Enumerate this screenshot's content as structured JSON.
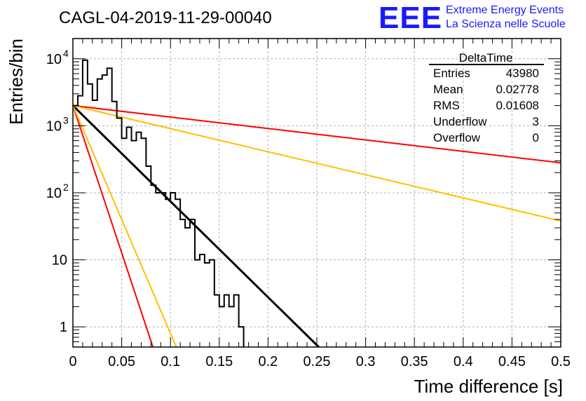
{
  "title": "CAGL-04-2019-11-29-00040",
  "logo": {
    "mark": "EEE",
    "line1": "Extreme Energy Events",
    "line2": "La Scienza nelle Scuole",
    "color": "#1a1aff"
  },
  "stats": {
    "title": "DeltaTime",
    "rows": [
      {
        "label": "Entries",
        "value": "43980"
      },
      {
        "label": "Mean",
        "value": "0.02778"
      },
      {
        "label": "RMS",
        "value": "0.01608"
      },
      {
        "label": "Underflow",
        "value": "3"
      },
      {
        "label": "Overflow",
        "value": "0"
      }
    ]
  },
  "chart_data": {
    "type": "histogram",
    "title": "CAGL-04-2019-11-29-00040",
    "xlabel": "Time difference [s]",
    "ylabel": "Entries/bin",
    "xlim": [
      0,
      0.5
    ],
    "ylim": [
      0.5,
      20000
    ],
    "yscale": "log",
    "grid": true,
    "x_ticks": [
      "0",
      "0.05",
      "0.1",
      "0.15",
      "0.2",
      "0.25",
      "0.3",
      "0.35",
      "0.4",
      "0.45",
      "0.5"
    ],
    "y_ticks": [
      {
        "value": 1,
        "base": "1",
        "exp": ""
      },
      {
        "value": 10,
        "base": "10",
        "exp": ""
      },
      {
        "value": 100,
        "base": "10",
        "exp": "2"
      },
      {
        "value": 1000,
        "base": "10",
        "exp": "3"
      },
      {
        "value": 10000,
        "base": "10",
        "exp": "4"
      }
    ],
    "bin_width": 0.005,
    "bins": [
      {
        "x": 0.0,
        "y": 2000
      },
      {
        "x": 0.005,
        "y": 2800
      },
      {
        "x": 0.01,
        "y": 9500
      },
      {
        "x": 0.015,
        "y": 4200
      },
      {
        "x": 0.02,
        "y": 2400
      },
      {
        "x": 0.025,
        "y": 5000
      },
      {
        "x": 0.03,
        "y": 5700
      },
      {
        "x": 0.035,
        "y": 7200
      },
      {
        "x": 0.04,
        "y": 2300
      },
      {
        "x": 0.045,
        "y": 1300
      },
      {
        "x": 0.05,
        "y": 650
      },
      {
        "x": 0.055,
        "y": 950
      },
      {
        "x": 0.06,
        "y": 600
      },
      {
        "x": 0.065,
        "y": 800
      },
      {
        "x": 0.07,
        "y": 650
      },
      {
        "x": 0.075,
        "y": 250
      },
      {
        "x": 0.08,
        "y": 130
      },
      {
        "x": 0.085,
        "y": 100
      },
      {
        "x": 0.09,
        "y": 100
      },
      {
        "x": 0.095,
        "y": 80
      },
      {
        "x": 0.1,
        "y": 100
      },
      {
        "x": 0.105,
        "y": 80
      },
      {
        "x": 0.11,
        "y": 40
      },
      {
        "x": 0.115,
        "y": 30
      },
      {
        "x": 0.12,
        "y": 40
      },
      {
        "x": 0.125,
        "y": 10
      },
      {
        "x": 0.13,
        "y": 12
      },
      {
        "x": 0.135,
        "y": 9
      },
      {
        "x": 0.14,
        "y": 10
      },
      {
        "x": 0.145,
        "y": 3
      },
      {
        "x": 0.15,
        "y": 2
      },
      {
        "x": 0.155,
        "y": 3
      },
      {
        "x": 0.16,
        "y": 2
      },
      {
        "x": 0.165,
        "y": 3
      },
      {
        "x": 0.17,
        "y": 1
      }
    ],
    "lines": [
      {
        "color": "#000000",
        "points": [
          [
            0,
            2000
          ],
          [
            0.252,
            0.5
          ]
        ]
      },
      {
        "color": "#ff0000",
        "points": [
          [
            0,
            2000
          ],
          [
            0.5,
            280
          ]
        ]
      },
      {
        "color": "#ffc000",
        "points": [
          [
            0,
            2000
          ],
          [
            0.5,
            38
          ]
        ]
      },
      {
        "color": "#ff0000",
        "points": [
          [
            0,
            2000
          ],
          [
            0.082,
            0.5
          ]
        ]
      },
      {
        "color": "#ffc000",
        "points": [
          [
            0,
            2000
          ],
          [
            0.106,
            0.5
          ]
        ]
      }
    ]
  }
}
